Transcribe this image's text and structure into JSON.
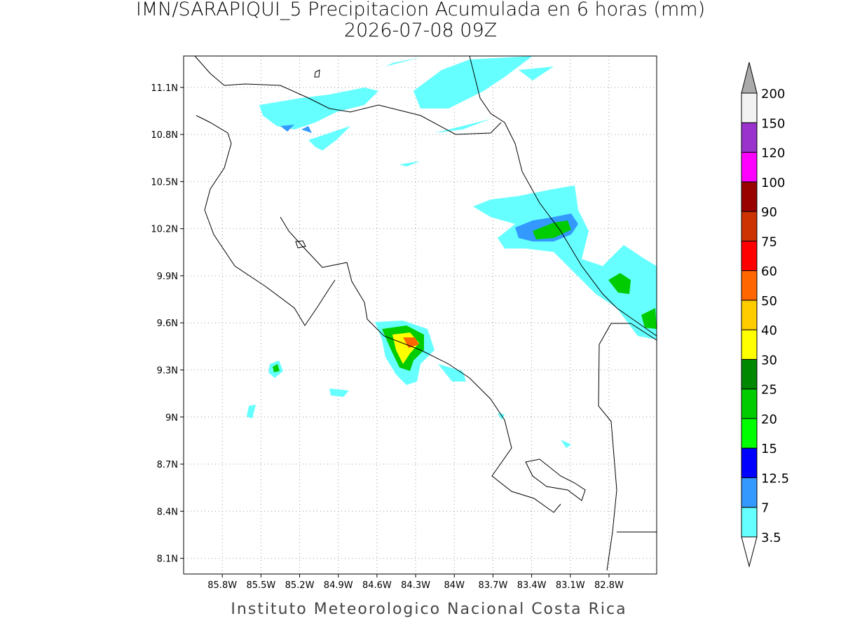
{
  "map": {
    "title": "IMN/SARAPIQUI_5 Precipitacion Acumulada en 6 horas (mm)",
    "subtitle": "2026-07-08 09Z",
    "xlim": [
      -86.1,
      -82.43
    ],
    "ylim": [
      8.0,
      11.3
    ],
    "xticks": [
      {
        "value": -85.8,
        "label": "85.8W"
      },
      {
        "value": -85.5,
        "label": "85.5W"
      },
      {
        "value": -85.2,
        "label": "85.2W"
      },
      {
        "value": -84.9,
        "label": "84.9W"
      },
      {
        "value": -84.6,
        "label": "84.6W"
      },
      {
        "value": -84.3,
        "label": "84.3W"
      },
      {
        "value": -84.0,
        "label": "84W"
      },
      {
        "value": -83.7,
        "label": "83.7W"
      },
      {
        "value": -83.4,
        "label": "83.4W"
      },
      {
        "value": -83.1,
        "label": "83.1W"
      },
      {
        "value": -82.8,
        "label": "82.8W"
      }
    ],
    "yticks": [
      {
        "value": 8.1,
        "label": "8.1N"
      },
      {
        "value": 8.4,
        "label": "8.4N"
      },
      {
        "value": 8.7,
        "label": "8.7N"
      },
      {
        "value": 9.0,
        "label": "9N"
      },
      {
        "value": 9.3,
        "label": "9.3N"
      },
      {
        "value": 9.6,
        "label": "9.6N"
      },
      {
        "value": 9.9,
        "label": "9.9N"
      },
      {
        "value": 10.2,
        "label": "10.2N"
      },
      {
        "value": 10.5,
        "label": "10.5N"
      },
      {
        "value": 10.8,
        "label": "10.8N"
      },
      {
        "value": 11.1,
        "label": "11.1N"
      }
    ],
    "colorbar": {
      "levels": [
        3.5,
        7,
        12.5,
        15,
        20,
        25,
        30,
        40,
        50,
        60,
        75,
        90,
        100,
        120,
        150,
        200
      ],
      "under_color": "#ffffff",
      "colors": [
        "#66ffff",
        "#3399ff",
        "#0000ff",
        "#00ff00",
        "#00cc00",
        "#008800",
        "#ffff00",
        "#ffcc00",
        "#ff6600",
        "#ff0000",
        "#cc3300",
        "#990000",
        "#ff00ff",
        "#9933cc",
        "#f2f2f2"
      ],
      "over_color": "#aaaaaa"
    },
    "footer": "Instituto Meteorologico Nacional Costa Rica"
  }
}
